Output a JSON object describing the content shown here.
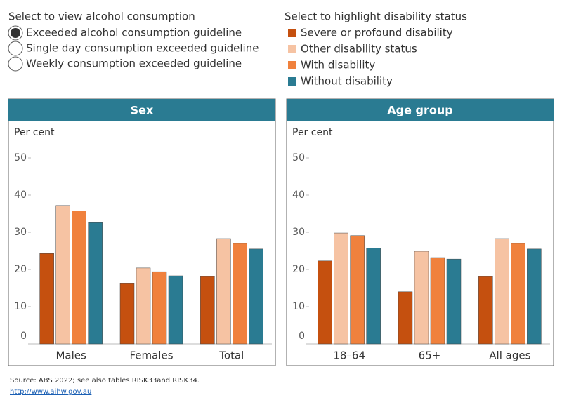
{
  "controls": {
    "radio_title": "Select to view alcohol consumption",
    "options": [
      "Exceeded alcohol consumption guideline",
      "Single day consumption exceeded guideline",
      "Weekly consumption exceeded guideline"
    ],
    "legend_title": "Select to highlight disability status"
  },
  "chart_data": [
    {
      "type": "bar",
      "title": "Sex",
      "ylabel": "Per cent",
      "categories": [
        "Males",
        "Females",
        "Total"
      ],
      "ylim": [
        0,
        50
      ],
      "yticks": [
        0,
        10,
        20,
        30,
        40,
        50
      ],
      "grid": false,
      "series": [
        {
          "name": "Severe or profound disability",
          "color": "#c5500f",
          "values": [
            24.3,
            16.2,
            18.1
          ]
        },
        {
          "name": "Other disability status",
          "color": "#f6c3a3",
          "values": [
            37.2,
            20.4,
            28.3
          ]
        },
        {
          "name": "With disability",
          "color": "#f0813d",
          "values": [
            35.8,
            19.4,
            27
          ]
        },
        {
          "name": "Without disability",
          "color": "#2a7b92",
          "values": [
            32.6,
            18.3,
            25.5
          ]
        }
      ]
    },
    {
      "type": "bar",
      "title": "Age group",
      "ylabel": "Per cent",
      "categories": [
        "18–64",
        "65+",
        "All ages"
      ],
      "ylim": [
        0,
        50
      ],
      "yticks": [
        0,
        10,
        20,
        30,
        40,
        50
      ],
      "grid": false,
      "series": [
        {
          "name": "Severe or profound disability",
          "color": "#c5500f",
          "values": [
            22.3,
            14,
            18.1
          ]
        },
        {
          "name": "Other disability status",
          "color": "#f6c3a3",
          "values": [
            29.8,
            24.9,
            28.3
          ]
        },
        {
          "name": "With disability",
          "color": "#f0813d",
          "values": [
            29.1,
            23.2,
            27
          ]
        },
        {
          "name": "Without disability",
          "color": "#2a7b92",
          "values": [
            25.8,
            22.8,
            25.5
          ]
        }
      ]
    }
  ],
  "footer": {
    "source": "Source: ABS 2022; see also tables RISK33and RISK34.",
    "link": "http://www.aihw.gov.au"
  }
}
